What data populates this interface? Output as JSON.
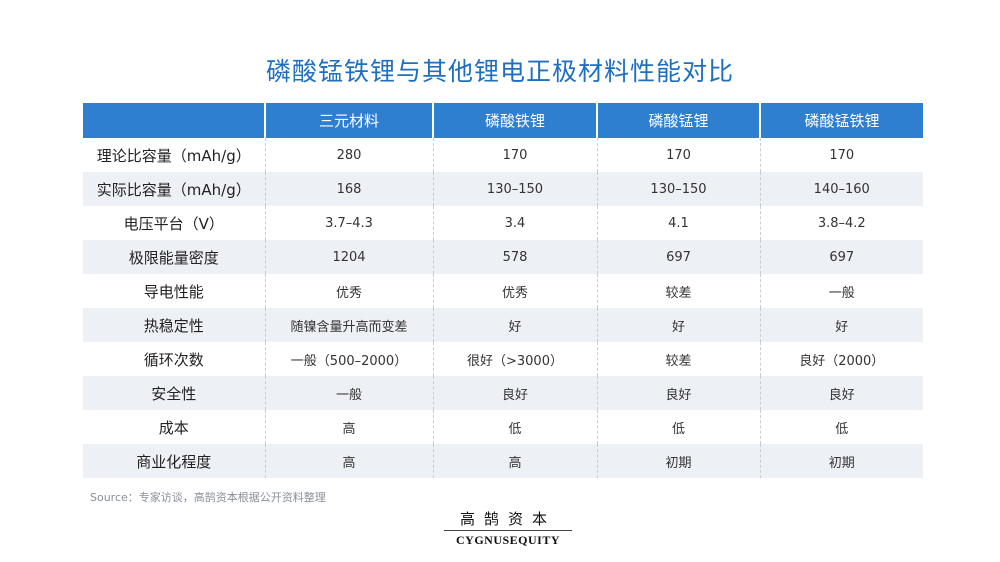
{
  "title": "磷酸锰铁锂与其他锂电正极材料性能对比",
  "table": {
    "headers": [
      "",
      "三元材料",
      "磷酸铁锂",
      "磷酸锰锂",
      "磷酸锰铁锂"
    ],
    "rows": [
      [
        "理论比容量（mAh/g）",
        "280",
        "170",
        "170",
        "170"
      ],
      [
        "实际比容量（mAh/g）",
        "168",
        "130–150",
        "130–150",
        "140–160"
      ],
      [
        "电压平台（V）",
        "3.7–4.3",
        "3.4",
        "4.1",
        "3.8–4.2"
      ],
      [
        "极限能量密度",
        "1204",
        "578",
        "697",
        "697"
      ],
      [
        "导电性能",
        "优秀",
        "优秀",
        "较差",
        "一般"
      ],
      [
        "热稳定性",
        "随镍含量升高而变差",
        "好",
        "好",
        "好"
      ],
      [
        "循环次数",
        "一般（500–2000）",
        "很好（>3000）",
        "较差",
        "良好（2000）"
      ],
      [
        "安全性",
        "一般",
        "良好",
        "良好",
        "良好"
      ],
      [
        "成本",
        "高",
        "低",
        "低",
        "低"
      ],
      [
        "商业化程度",
        "高",
        "高",
        "初期",
        "初期"
      ]
    ]
  },
  "source": "Source：专家访谈，高鹄资本根据公开资料整理",
  "logo": {
    "cn": "高鹄资本",
    "en_bold": "CYGNUS",
    "en_rest": "EQUITY"
  },
  "colors": {
    "title": "#1f6fc1",
    "header_bg": "#2f7fd0",
    "stripe": "#edf0f5"
  }
}
